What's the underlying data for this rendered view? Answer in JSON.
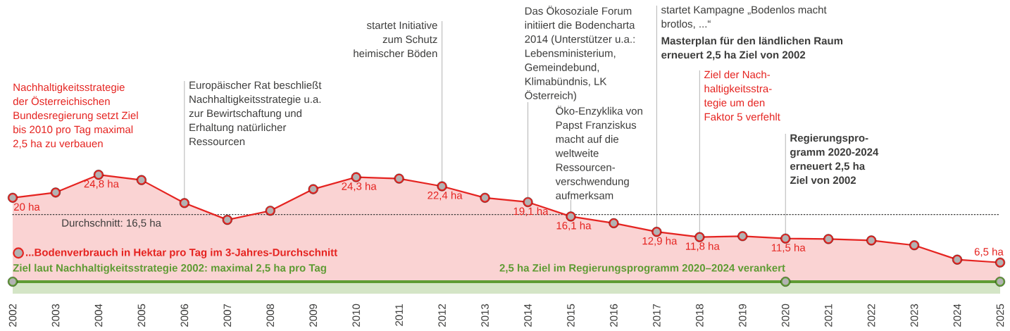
{
  "chart_data": {
    "type": "area",
    "x": [
      2002,
      2003,
      2004,
      2005,
      2006,
      2007,
      2008,
      2009,
      2010,
      2011,
      2012,
      2013,
      2014,
      2015,
      2016,
      2017,
      2018,
      2019,
      2020,
      2021,
      2022,
      2023,
      2024,
      2025
    ],
    "xlim": [
      2002,
      2025
    ],
    "xticks": [
      2002,
      2003,
      2004,
      2005,
      2006,
      2007,
      2008,
      2009,
      2010,
      2011,
      2012,
      2013,
      2014,
      2015,
      2016,
      2017,
      2018,
      2019,
      2020,
      2021,
      2022,
      2023,
      2024,
      2025
    ],
    "tick_labels": "x",
    "marker": "circle",
    "legend": "bottom left",
    "series": [
      {
        "name": "...Bodenverbrauch in Hektar pro Tag im 3-Jahres-Durchschnitt",
        "color": "#e52421",
        "values": [
          20,
          21.1,
          24.8,
          23.7,
          18.9,
          15.4,
          17.3,
          21.8,
          24.3,
          24.0,
          22.4,
          20.0,
          19.1,
          16.1,
          14.7,
          12.9,
          11.8,
          12.0,
          11.5,
          11.4,
          11.1,
          10.1,
          7.1,
          6.5
        ],
        "value_labels": [
          "20 ha",
          null,
          "24,8 ha",
          null,
          null,
          null,
          null,
          null,
          "24,3 ha",
          null,
          "22,4 ha",
          null,
          "19,1 ha",
          "16,1 ha",
          null,
          "12,9 ha",
          "11,8 ha",
          null,
          "11,5 ha",
          null,
          null,
          null,
          null,
          "6,5 ha"
        ]
      },
      {
        "type": "line",
        "color": "#5e9b33",
        "x": [
          2002,
          2020,
          2025
        ],
        "values": [
          2.5,
          2.5,
          2.5
        ]
      }
    ],
    "bands": [
      {
        "axis": "y",
        "from": 0,
        "to": 2.5,
        "color": "#d4e5c6"
      }
    ],
    "ref_lines": [
      {
        "axis": "y",
        "value": 16.5,
        "label": "Durchschnitt: 16,5 ha",
        "line_style": "dotted",
        "color": "#3c3c3b"
      },
      {
        "axis": "x",
        "value": 2006,
        "label": "Europäischer Rat beschließt Nachhaltigkeitsstrategie u.a. zur Bewirtschaftung und Erhaltung natürlicher Ressourcen",
        "color": "#b4b4b4"
      },
      {
        "axis": "x",
        "value": 2012,
        "label": "startet Initiative zum Schutz heimischer Böden",
        "color": "#b4b4b4"
      },
      {
        "axis": "x",
        "value": 2014,
        "label": "Das Ökosoziale Forum initiiert die Bodencharta 2014 (Unterstützer u.a.: Lebensministerium, Gemeindebund, Klimabündnis, LK Österreich)",
        "color": "#b4b4b4"
      },
      {
        "axis": "x",
        "value": 2015,
        "label": "Öko-Enzyklika von Papst Franziskus macht auf die weltweite Ressourcen-verschwendung aufmerksam",
        "color": "#b4b4b4"
      },
      {
        "axis": "x",
        "value": 2017,
        "label": "startet Kampagne „Bodenlos macht brotlos, ...“",
        "color": "#b4b4b4"
      },
      {
        "axis": "x",
        "value": 2018,
        "label": "Ziel der Nach-haltigkeitsstra-tegie um den Faktor 5 verfehlt",
        "color": "#b4b4b4"
      },
      {
        "axis": "x",
        "value": 2020,
        "label": "Regierungspro-gramm 2020-2024 erneuert 2,5 ha Ziel von 2002",
        "color": "#b4b4b4"
      }
    ],
    "annotations": [
      "Nachhaltigkeitsstrategie der Österreichischen Bundesregierung setzt Ziel bis 2010 pro Tag maximal 2,5 ha zu verbauen",
      "Masterplan für den ländlichen Raum erneuert 2,5 ha Ziel von 2002",
      {
        "text": "Ziel laut Nachhaltigkeitsstrategie 2002: maximal 2,5 ha pro Tag",
        "x": 2002,
        "y": 2.5
      },
      {
        "text": "2,5 ha Ziel im Regierungsprogramm 2020–2024 verankert",
        "x": 2020,
        "y": 2.5
      }
    ]
  }
}
